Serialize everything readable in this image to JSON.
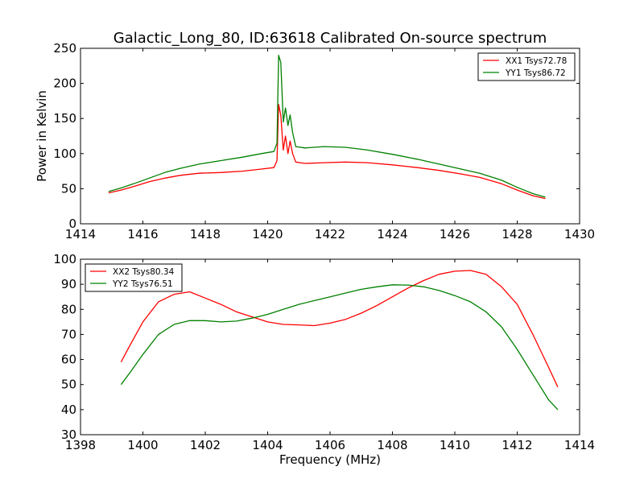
{
  "figure": {
    "title": "Galactic_Long_80, ID:63618 Calibrated On-source spectrum"
  },
  "colors": {
    "series_1": "#ff0000",
    "series_2": "#008000",
    "axes": "#000000",
    "background": "#ffffff"
  },
  "chart_data": [
    {
      "type": "line",
      "title": "Galactic_Long_80, ID:63618 Calibrated On-source spectrum",
      "xlabel": "",
      "ylabel": "Power in Kelvin",
      "xlim": [
        1414,
        1430
      ],
      "ylim": [
        0,
        250
      ],
      "xticks": [
        1414,
        1416,
        1418,
        1420,
        1422,
        1424,
        1426,
        1428,
        1430
      ],
      "yticks": [
        0,
        50,
        100,
        150,
        200,
        250
      ],
      "grid": false,
      "legend_position": "upper right",
      "series": [
        {
          "name": "XX1 Tsys72.78",
          "color": "#ff0000",
          "points": [
            [
              1414.9,
              44
            ],
            [
              1415.3,
              48
            ],
            [
              1415.7,
              53
            ],
            [
              1416.2,
              60
            ],
            [
              1416.7,
              65
            ],
            [
              1417.2,
              69
            ],
            [
              1417.8,
              72
            ],
            [
              1418.5,
              73
            ],
            [
              1419.2,
              75
            ],
            [
              1419.8,
              78
            ],
            [
              1420.2,
              80
            ],
            [
              1420.3,
              90
            ],
            [
              1420.35,
              170
            ],
            [
              1420.42,
              155
            ],
            [
              1420.5,
              105
            ],
            [
              1420.57,
              125
            ],
            [
              1420.65,
              100
            ],
            [
              1420.72,
              118
            ],
            [
              1420.8,
              100
            ],
            [
              1420.9,
              88
            ],
            [
              1421.2,
              86
            ],
            [
              1421.8,
              87
            ],
            [
              1422.5,
              88
            ],
            [
              1423.2,
              87
            ],
            [
              1424.0,
              84
            ],
            [
              1424.8,
              80
            ],
            [
              1425.5,
              76
            ],
            [
              1426.2,
              71
            ],
            [
              1426.8,
              66
            ],
            [
              1427.5,
              57
            ],
            [
              1428.0,
              48
            ],
            [
              1428.5,
              40
            ],
            [
              1428.9,
              36
            ]
          ]
        },
        {
          "name": "YY1 Tsys86.72",
          "color": "#008000",
          "points": [
            [
              1414.9,
              46
            ],
            [
              1415.3,
              51
            ],
            [
              1415.7,
              57
            ],
            [
              1416.2,
              65
            ],
            [
              1416.7,
              73
            ],
            [
              1417.2,
              79
            ],
            [
              1417.8,
              85
            ],
            [
              1418.5,
              90
            ],
            [
              1419.2,
              95
            ],
            [
              1419.8,
              100
            ],
            [
              1420.2,
              103
            ],
            [
              1420.3,
              115
            ],
            [
              1420.35,
              240
            ],
            [
              1420.42,
              230
            ],
            [
              1420.5,
              145
            ],
            [
              1420.57,
              165
            ],
            [
              1420.65,
              140
            ],
            [
              1420.72,
              155
            ],
            [
              1420.8,
              130
            ],
            [
              1420.9,
              110
            ],
            [
              1421.2,
              108
            ],
            [
              1421.8,
              110
            ],
            [
              1422.5,
              109
            ],
            [
              1423.2,
              105
            ],
            [
              1424.0,
              99
            ],
            [
              1424.8,
              92
            ],
            [
              1425.5,
              85
            ],
            [
              1426.2,
              78
            ],
            [
              1426.8,
              72
            ],
            [
              1427.5,
              62
            ],
            [
              1428.0,
              52
            ],
            [
              1428.5,
              43
            ],
            [
              1428.9,
              38
            ]
          ]
        }
      ]
    },
    {
      "type": "line",
      "title": "",
      "xlabel": "Frequency (MHz)",
      "ylabel": "",
      "xlim": [
        1398,
        1414
      ],
      "ylim": [
        30,
        100
      ],
      "xticks": [
        1398,
        1400,
        1402,
        1404,
        1406,
        1408,
        1410,
        1412,
        1414
      ],
      "yticks": [
        30,
        40,
        50,
        60,
        70,
        80,
        90,
        100
      ],
      "grid": false,
      "legend_position": "upper left",
      "series": [
        {
          "name": "XX2 Tsys80.34",
          "color": "#ff0000",
          "points": [
            [
              1399.3,
              59
            ],
            [
              1399.6,
              66
            ],
            [
              1400.0,
              75
            ],
            [
              1400.5,
              83
            ],
            [
              1401.0,
              86
            ],
            [
              1401.5,
              87
            ],
            [
              1402.0,
              84.5
            ],
            [
              1402.5,
              82
            ],
            [
              1403.0,
              79
            ],
            [
              1403.5,
              77
            ],
            [
              1404.0,
              75
            ],
            [
              1404.5,
              74
            ],
            [
              1405.0,
              73.8
            ],
            [
              1405.5,
              73.5
            ],
            [
              1406.0,
              74.5
            ],
            [
              1406.5,
              76
            ],
            [
              1407.0,
              78.5
            ],
            [
              1407.5,
              81.5
            ],
            [
              1408.0,
              85
            ],
            [
              1408.5,
              88.5
            ],
            [
              1409.0,
              91.5
            ],
            [
              1409.5,
              94
            ],
            [
              1410.0,
              95.2
            ],
            [
              1410.5,
              95.5
            ],
            [
              1411.0,
              94
            ],
            [
              1411.5,
              89
            ],
            [
              1412.0,
              82
            ],
            [
              1412.5,
              70
            ],
            [
              1413.0,
              57
            ],
            [
              1413.3,
              49
            ]
          ]
        },
        {
          "name": "YY2 Tsys76.51",
          "color": "#008000",
          "points": [
            [
              1399.3,
              50
            ],
            [
              1399.6,
              55
            ],
            [
              1400.0,
              62
            ],
            [
              1400.5,
              70
            ],
            [
              1401.0,
              74
            ],
            [
              1401.5,
              75.5
            ],
            [
              1402.0,
              75.5
            ],
            [
              1402.5,
              75
            ],
            [
              1403.0,
              75.3
            ],
            [
              1403.5,
              76.5
            ],
            [
              1404.0,
              78
            ],
            [
              1404.5,
              80
            ],
            [
              1405.0,
              82
            ],
            [
              1405.5,
              83.5
            ],
            [
              1406.0,
              85
            ],
            [
              1406.5,
              86.5
            ],
            [
              1407.0,
              88
            ],
            [
              1407.5,
              89
            ],
            [
              1408.0,
              89.8
            ],
            [
              1408.5,
              89.7
            ],
            [
              1409.0,
              89
            ],
            [
              1409.5,
              87.5
            ],
            [
              1410.0,
              85.5
            ],
            [
              1410.5,
              83
            ],
            [
              1411.0,
              79
            ],
            [
              1411.5,
              73
            ],
            [
              1412.0,
              64
            ],
            [
              1412.5,
              54
            ],
            [
              1413.0,
              44
            ],
            [
              1413.3,
              40
            ]
          ]
        }
      ]
    }
  ]
}
